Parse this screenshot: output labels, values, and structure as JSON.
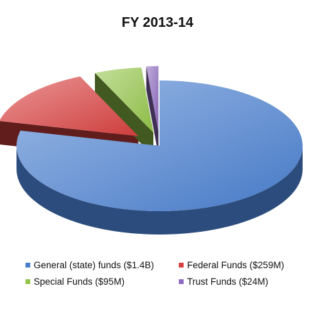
{
  "chart_data": {
    "type": "pie",
    "title": "FY 2013-14",
    "legend_position": "bottom",
    "slices": [
      {
        "label": "General (state) funds ($1.4B)",
        "value": 1400,
        "color": "#4a7fd0"
      },
      {
        "label": "Federal Funds ($259M)",
        "value": 259,
        "color": "#d8403f"
      },
      {
        "label": "Special Funds ($95M)",
        "value": 95,
        "color": "#93c54a"
      },
      {
        "label": "Trust Funds ($24M)",
        "value": 24,
        "color": "#8d69bd"
      }
    ]
  }
}
